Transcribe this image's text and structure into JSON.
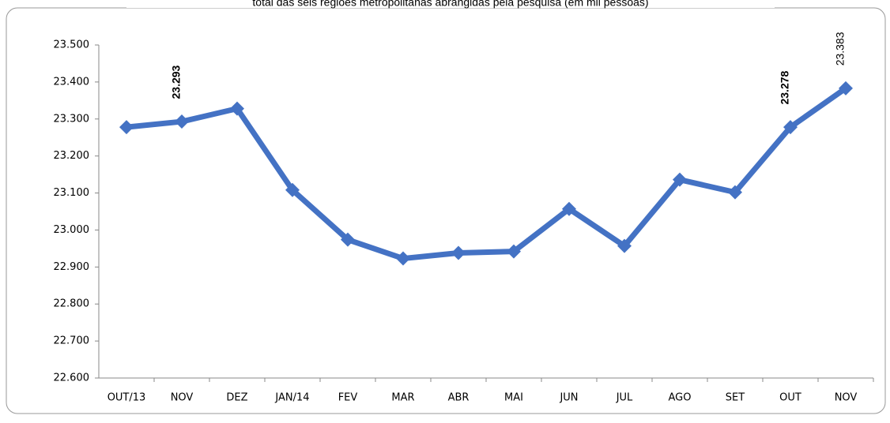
{
  "chart_data": {
    "type": "line",
    "title": "total das seis regiões metropolitanas abrangidas pela pesquisa (em mil pessoas)",
    "categories": [
      "OUT/13",
      "NOV",
      "DEZ",
      "JAN/14",
      "FEV",
      "MAR",
      "ABR",
      "MAI",
      "JUN",
      "JUL",
      "AGO",
      "SET",
      "OUT",
      "NOV"
    ],
    "series": [
      {
        "name": null,
        "color": "#4472c4",
        "values": [
          23278,
          23293,
          23328,
          23108,
          22974,
          22923,
          22938,
          22942,
          23057,
          22957,
          23136,
          23102,
          23278,
          23383
        ],
        "value_labels": [
          null,
          "23.293",
          null,
          null,
          null,
          null,
          null,
          null,
          null,
          null,
          null,
          null,
          "23.278",
          "23.383"
        ]
      }
    ],
    "ylim": [
      22600,
      23500
    ],
    "yticks": [
      {
        "value": 22600,
        "label": "22.600"
      },
      {
        "value": 22700,
        "label": "22.700"
      },
      {
        "value": 22800,
        "label": "22.800"
      },
      {
        "value": 22900,
        "label": "22.900"
      },
      {
        "value": 23000,
        "label": "23.000"
      },
      {
        "value": 23100,
        "label": "23.100"
      },
      {
        "value": 23200,
        "label": "23.200"
      },
      {
        "value": 23300,
        "label": "23.300"
      },
      {
        "value": 23400,
        "label": "23.400"
      },
      {
        "value": 23500,
        "label": "23.500"
      }
    ],
    "grid": false
  }
}
